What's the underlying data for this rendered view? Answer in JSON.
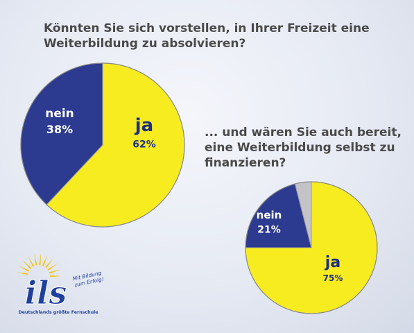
{
  "chart_data": [
    {
      "type": "pie",
      "title": "Könnten Sie sich vorstellen, in Ihrer Freizeit eine Weiterbildung zu absolvieren?",
      "slices": [
        {
          "label": "ja",
          "value_label": "62%",
          "value": 62,
          "color": "#f7ec1f"
        },
        {
          "label": "nein",
          "value_label": "38%",
          "value": 38,
          "color": "#2c3b8f"
        }
      ]
    },
    {
      "type": "pie",
      "title_lines": [
        "... und wären Sie auch bereit,",
        "eine Weiterbildung selbst zu",
        "finanzieren?"
      ],
      "slices": [
        {
          "label": "ja",
          "value_label": "75%",
          "value": 75,
          "color": "#f7ec1f"
        },
        {
          "label": "nein",
          "value_label": "21%",
          "value": 21,
          "color": "#2c3b8f"
        },
        {
          "label": "",
          "value_label": "",
          "value": 4,
          "color": "#c4c4c8"
        }
      ]
    }
  ],
  "logo": {
    "name": "ils",
    "tagline_1": "Mit Bildung",
    "tagline_2": "zum Erfolg!",
    "slogan": "Deutschlands größte Fernschule",
    "sun_color": "#f6c400",
    "text_color": "#1f3f9c"
  }
}
